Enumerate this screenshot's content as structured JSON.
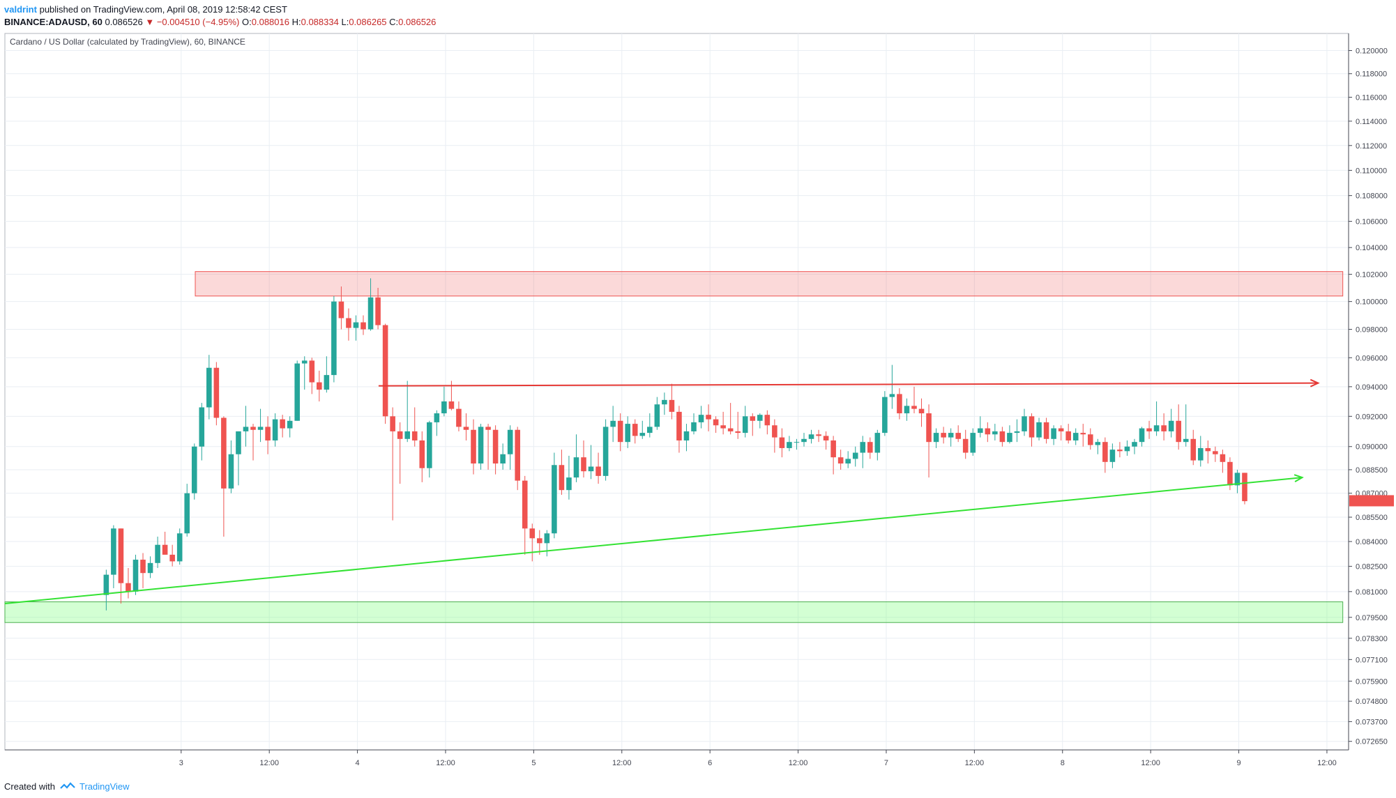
{
  "header": {
    "author": "valdrint",
    "published_text": "published on TradingView.com, April 08, 2019 12:58:42 CEST"
  },
  "ohlc": {
    "symbol": "BINANCE:ADAUSD, 60",
    "last": "0.086526",
    "change_arrow": "▼",
    "change": "−0.004510 (−4.95%)",
    "open_label": "O:",
    "open": "0.088016",
    "high_label": "H:",
    "high": "0.088334",
    "low_label": "L:",
    "low": "0.086265",
    "close_label": "C:",
    "close": "0.086526"
  },
  "footer": {
    "created_with": "Created with",
    "brand": "TradingView",
    "logo_icon": "tradingview-logo-icon"
  },
  "colors": {
    "up": "#26a69a",
    "down": "#ef5350",
    "grid": "#e9eef3",
    "axis": "#434651",
    "zone_red": "#ef5350",
    "zone_green": "#4caf50",
    "line_red": "#e53935",
    "line_green": "#33e233"
  },
  "chart_data": {
    "type": "candlestick",
    "title": "Cardano / US Dollar (calculated by TradingView), 60, BINANCE",
    "y_axis": {
      "scale": "log",
      "range": [
        0.0722,
        0.1215
      ],
      "tick_labels": [
        "0.120000",
        "0.118000",
        "0.116000",
        "0.114000",
        "0.112000",
        "0.110000",
        "0.108000",
        "0.106000",
        "0.104000",
        "0.102000",
        "0.100000",
        "0.098000",
        "0.096000",
        "0.094000",
        "0.092000",
        "0.090000",
        "0.088500",
        "0.087000",
        "0.085500",
        "0.084000",
        "0.082500",
        "0.081000",
        "0.079500",
        "0.078300",
        "0.077100",
        "0.075900",
        "0.074800",
        "0.073700",
        "0.072650"
      ]
    },
    "x_axis": {
      "range_days": [
        2.0,
        9.52
      ],
      "ticks": [
        {
          "t": 3.0,
          "label": "3"
        },
        {
          "t": 3.5,
          "label": "12:00"
        },
        {
          "t": 4.0,
          "label": "4"
        },
        {
          "t": 4.5,
          "label": "12:00"
        },
        {
          "t": 5.0,
          "label": "5"
        },
        {
          "t": 5.5,
          "label": "12:00"
        },
        {
          "t": 6.0,
          "label": "6"
        },
        {
          "t": 6.5,
          "label": "12:00"
        },
        {
          "t": 7.0,
          "label": "7"
        },
        {
          "t": 7.5,
          "label": "12:00"
        },
        {
          "t": 8.0,
          "label": "8"
        },
        {
          "t": 8.5,
          "label": "12:00"
        },
        {
          "t": 9.0,
          "label": "9"
        },
        {
          "t": 9.5,
          "label": "12:00"
        }
      ]
    },
    "candle_interval_days": 0.0416667,
    "candles_start_day": 2.575,
    "candles": [
      {
        "o": 0.0808,
        "h": 0.0823,
        "l": 0.0799,
        "c": 0.082
      },
      {
        "o": 0.082,
        "h": 0.085,
        "l": 0.0812,
        "c": 0.0848
      },
      {
        "o": 0.0848,
        "h": 0.0848,
        "l": 0.0803,
        "c": 0.0815
      },
      {
        "o": 0.0815,
        "h": 0.0824,
        "l": 0.0806,
        "c": 0.081
      },
      {
        "o": 0.081,
        "h": 0.0832,
        "l": 0.0808,
        "c": 0.0829
      },
      {
        "o": 0.0829,
        "h": 0.0833,
        "l": 0.0812,
        "c": 0.0821
      },
      {
        "o": 0.0821,
        "h": 0.0831,
        "l": 0.0818,
        "c": 0.0827
      },
      {
        "o": 0.0827,
        "h": 0.0843,
        "l": 0.0824,
        "c": 0.0838
      },
      {
        "o": 0.0838,
        "h": 0.0846,
        "l": 0.0832,
        "c": 0.0832
      },
      {
        "o": 0.0832,
        "h": 0.0838,
        "l": 0.0825,
        "c": 0.0828
      },
      {
        "o": 0.0828,
        "h": 0.0848,
        "l": 0.0826,
        "c": 0.0845
      },
      {
        "o": 0.0845,
        "h": 0.0876,
        "l": 0.0843,
        "c": 0.087
      },
      {
        "o": 0.087,
        "h": 0.0902,
        "l": 0.0866,
        "c": 0.09
      },
      {
        "o": 0.09,
        "h": 0.0929,
        "l": 0.0891,
        "c": 0.0926
      },
      {
        "o": 0.0926,
        "h": 0.0962,
        "l": 0.0918,
        "c": 0.0953
      },
      {
        "o": 0.0953,
        "h": 0.0957,
        "l": 0.0914,
        "c": 0.0919
      },
      {
        "o": 0.0919,
        "h": 0.092,
        "l": 0.0843,
        "c": 0.0873
      },
      {
        "o": 0.0873,
        "h": 0.0904,
        "l": 0.087,
        "c": 0.0895
      },
      {
        "o": 0.0895,
        "h": 0.091,
        "l": 0.0875,
        "c": 0.091
      },
      {
        "o": 0.091,
        "h": 0.0927,
        "l": 0.09,
        "c": 0.0913
      },
      {
        "o": 0.0913,
        "h": 0.0915,
        "l": 0.0891,
        "c": 0.0911
      },
      {
        "o": 0.0911,
        "h": 0.0925,
        "l": 0.0903,
        "c": 0.0913
      },
      {
        "o": 0.0913,
        "h": 0.092,
        "l": 0.0895,
        "c": 0.0904
      },
      {
        "o": 0.0904,
        "h": 0.0922,
        "l": 0.09,
        "c": 0.0918
      },
      {
        "o": 0.0918,
        "h": 0.0921,
        "l": 0.0906,
        "c": 0.0912
      },
      {
        "o": 0.0912,
        "h": 0.092,
        "l": 0.0906,
        "c": 0.0917
      },
      {
        "o": 0.0917,
        "h": 0.0958,
        "l": 0.0917,
        "c": 0.0956
      },
      {
        "o": 0.0956,
        "h": 0.0961,
        "l": 0.0938,
        "c": 0.0958
      },
      {
        "o": 0.0958,
        "h": 0.096,
        "l": 0.0935,
        "c": 0.0943
      },
      {
        "o": 0.0943,
        "h": 0.0951,
        "l": 0.093,
        "c": 0.0938
      },
      {
        "o": 0.0938,
        "h": 0.0961,
        "l": 0.0936,
        "c": 0.0948
      },
      {
        "o": 0.0948,
        "h": 0.1004,
        "l": 0.0943,
        "c": 0.1
      },
      {
        "o": 0.1,
        "h": 0.1011,
        "l": 0.098,
        "c": 0.0988
      },
      {
        "o": 0.0988,
        "h": 0.0995,
        "l": 0.0972,
        "c": 0.0981
      },
      {
        "o": 0.0981,
        "h": 0.099,
        "l": 0.0972,
        "c": 0.0985
      },
      {
        "o": 0.0985,
        "h": 0.099,
        "l": 0.0976,
        "c": 0.098
      },
      {
        "o": 0.098,
        "h": 0.1017,
        "l": 0.0979,
        "c": 0.1003
      },
      {
        "o": 0.1003,
        "h": 0.101,
        "l": 0.098,
        "c": 0.0983
      },
      {
        "o": 0.0983,
        "h": 0.0984,
        "l": 0.0915,
        "c": 0.092
      },
      {
        "o": 0.092,
        "h": 0.0926,
        "l": 0.0853,
        "c": 0.091
      },
      {
        "o": 0.091,
        "h": 0.0916,
        "l": 0.0876,
        "c": 0.0905
      },
      {
        "o": 0.0905,
        "h": 0.0944,
        "l": 0.0903,
        "c": 0.091
      },
      {
        "o": 0.091,
        "h": 0.0926,
        "l": 0.09,
        "c": 0.0904
      },
      {
        "o": 0.0904,
        "h": 0.091,
        "l": 0.0877,
        "c": 0.0886
      },
      {
        "o": 0.0886,
        "h": 0.0917,
        "l": 0.088,
        "c": 0.0916
      },
      {
        "o": 0.0916,
        "h": 0.0924,
        "l": 0.0907,
        "c": 0.0922
      },
      {
        "o": 0.0922,
        "h": 0.094,
        "l": 0.092,
        "c": 0.093
      },
      {
        "o": 0.093,
        "h": 0.0944,
        "l": 0.0924,
        "c": 0.0925
      },
      {
        "o": 0.0925,
        "h": 0.093,
        "l": 0.091,
        "c": 0.0913
      },
      {
        "o": 0.0913,
        "h": 0.0922,
        "l": 0.0904,
        "c": 0.0911
      },
      {
        "o": 0.0911,
        "h": 0.0918,
        "l": 0.0882,
        "c": 0.0889
      },
      {
        "o": 0.0889,
        "h": 0.0915,
        "l": 0.0885,
        "c": 0.0913
      },
      {
        "o": 0.0913,
        "h": 0.0915,
        "l": 0.0885,
        "c": 0.0911
      },
      {
        "o": 0.0911,
        "h": 0.0914,
        "l": 0.0882,
        "c": 0.0889
      },
      {
        "o": 0.0889,
        "h": 0.0902,
        "l": 0.0885,
        "c": 0.0895
      },
      {
        "o": 0.0895,
        "h": 0.0914,
        "l": 0.0885,
        "c": 0.0911
      },
      {
        "o": 0.0911,
        "h": 0.0913,
        "l": 0.0872,
        "c": 0.0878
      },
      {
        "o": 0.0878,
        "h": 0.0881,
        "l": 0.0832,
        "c": 0.0848
      },
      {
        "o": 0.0848,
        "h": 0.0851,
        "l": 0.0828,
        "c": 0.0842
      },
      {
        "o": 0.0842,
        "h": 0.0847,
        "l": 0.0832,
        "c": 0.0839
      },
      {
        "o": 0.0839,
        "h": 0.0847,
        "l": 0.0831,
        "c": 0.0845
      },
      {
        "o": 0.0845,
        "h": 0.0896,
        "l": 0.0842,
        "c": 0.0888
      },
      {
        "o": 0.0888,
        "h": 0.0898,
        "l": 0.0869,
        "c": 0.0872
      },
      {
        "o": 0.0872,
        "h": 0.0894,
        "l": 0.0866,
        "c": 0.088
      },
      {
        "o": 0.088,
        "h": 0.0908,
        "l": 0.0877,
        "c": 0.0893
      },
      {
        "o": 0.0893,
        "h": 0.0904,
        "l": 0.088,
        "c": 0.0884
      },
      {
        "o": 0.0884,
        "h": 0.0901,
        "l": 0.0879,
        "c": 0.0887
      },
      {
        "o": 0.0887,
        "h": 0.0896,
        "l": 0.0876,
        "c": 0.0881
      },
      {
        "o": 0.0881,
        "h": 0.0918,
        "l": 0.0878,
        "c": 0.0913
      },
      {
        "o": 0.0913,
        "h": 0.0927,
        "l": 0.0903,
        "c": 0.0917
      },
      {
        "o": 0.0917,
        "h": 0.0922,
        "l": 0.0897,
        "c": 0.0903
      },
      {
        "o": 0.0903,
        "h": 0.092,
        "l": 0.0899,
        "c": 0.0915
      },
      {
        "o": 0.0915,
        "h": 0.0918,
        "l": 0.0902,
        "c": 0.0907
      },
      {
        "o": 0.0907,
        "h": 0.0917,
        "l": 0.0905,
        "c": 0.0909
      },
      {
        "o": 0.0909,
        "h": 0.0922,
        "l": 0.0906,
        "c": 0.0913
      },
      {
        "o": 0.0913,
        "h": 0.0933,
        "l": 0.0911,
        "c": 0.0928
      },
      {
        "o": 0.0928,
        "h": 0.0936,
        "l": 0.0921,
        "c": 0.0931
      },
      {
        "o": 0.0931,
        "h": 0.0942,
        "l": 0.0918,
        "c": 0.0923
      },
      {
        "o": 0.0923,
        "h": 0.0927,
        "l": 0.0896,
        "c": 0.0904
      },
      {
        "o": 0.0904,
        "h": 0.0915,
        "l": 0.0897,
        "c": 0.091
      },
      {
        "o": 0.091,
        "h": 0.0922,
        "l": 0.0908,
        "c": 0.0916
      },
      {
        "o": 0.0916,
        "h": 0.0927,
        "l": 0.0912,
        "c": 0.0921
      },
      {
        "o": 0.0921,
        "h": 0.0928,
        "l": 0.091,
        "c": 0.0918
      },
      {
        "o": 0.0918,
        "h": 0.092,
        "l": 0.0909,
        "c": 0.0914
      },
      {
        "o": 0.0914,
        "h": 0.0923,
        "l": 0.0908,
        "c": 0.0912
      },
      {
        "o": 0.0912,
        "h": 0.0929,
        "l": 0.0908,
        "c": 0.091
      },
      {
        "o": 0.091,
        "h": 0.0923,
        "l": 0.0905,
        "c": 0.0909
      },
      {
        "o": 0.0909,
        "h": 0.0927,
        "l": 0.0906,
        "c": 0.092
      },
      {
        "o": 0.092,
        "h": 0.0922,
        "l": 0.0907,
        "c": 0.0917
      },
      {
        "o": 0.0917,
        "h": 0.0922,
        "l": 0.0912,
        "c": 0.0921
      },
      {
        "o": 0.0921,
        "h": 0.0924,
        "l": 0.0908,
        "c": 0.0914
      },
      {
        "o": 0.0914,
        "h": 0.0918,
        "l": 0.0896,
        "c": 0.0906
      },
      {
        "o": 0.0906,
        "h": 0.0912,
        "l": 0.0893,
        "c": 0.0899
      },
      {
        "o": 0.0899,
        "h": 0.0907,
        "l": 0.0897,
        "c": 0.0903
      },
      {
        "o": 0.0903,
        "h": 0.0905,
        "l": 0.0898,
        "c": 0.0903
      },
      {
        "o": 0.0903,
        "h": 0.0909,
        "l": 0.09,
        "c": 0.0905
      },
      {
        "o": 0.0905,
        "h": 0.0911,
        "l": 0.0902,
        "c": 0.0908
      },
      {
        "o": 0.0908,
        "h": 0.0911,
        "l": 0.0903,
        "c": 0.0907
      },
      {
        "o": 0.0907,
        "h": 0.091,
        "l": 0.0898,
        "c": 0.0904
      },
      {
        "o": 0.0904,
        "h": 0.0907,
        "l": 0.0882,
        "c": 0.0893
      },
      {
        "o": 0.0893,
        "h": 0.0898,
        "l": 0.0885,
        "c": 0.0889
      },
      {
        "o": 0.0889,
        "h": 0.0897,
        "l": 0.0886,
        "c": 0.0892
      },
      {
        "o": 0.0892,
        "h": 0.09,
        "l": 0.0887,
        "c": 0.0896
      },
      {
        "o": 0.0896,
        "h": 0.0907,
        "l": 0.0886,
        "c": 0.0903
      },
      {
        "o": 0.0903,
        "h": 0.0906,
        "l": 0.0892,
        "c": 0.0896
      },
      {
        "o": 0.0896,
        "h": 0.0911,
        "l": 0.0891,
        "c": 0.0909
      },
      {
        "o": 0.0909,
        "h": 0.0937,
        "l": 0.0907,
        "c": 0.0933
      },
      {
        "o": 0.0933,
        "h": 0.0955,
        "l": 0.0925,
        "c": 0.0935
      },
      {
        "o": 0.0935,
        "h": 0.0939,
        "l": 0.0918,
        "c": 0.0922
      },
      {
        "o": 0.0922,
        "h": 0.0932,
        "l": 0.0917,
        "c": 0.0927
      },
      {
        "o": 0.0927,
        "h": 0.094,
        "l": 0.0922,
        "c": 0.0925
      },
      {
        "o": 0.0925,
        "h": 0.0932,
        "l": 0.0913,
        "c": 0.0922
      },
      {
        "o": 0.0922,
        "h": 0.0928,
        "l": 0.088,
        "c": 0.0903
      },
      {
        "o": 0.0903,
        "h": 0.0912,
        "l": 0.0899,
        "c": 0.0909
      },
      {
        "o": 0.0909,
        "h": 0.0913,
        "l": 0.0902,
        "c": 0.0906
      },
      {
        "o": 0.0906,
        "h": 0.0912,
        "l": 0.09,
        "c": 0.0909
      },
      {
        "o": 0.0909,
        "h": 0.0914,
        "l": 0.0903,
        "c": 0.0905
      },
      {
        "o": 0.0905,
        "h": 0.0911,
        "l": 0.0892,
        "c": 0.0896
      },
      {
        "o": 0.0896,
        "h": 0.0912,
        "l": 0.0894,
        "c": 0.0909
      },
      {
        "o": 0.0909,
        "h": 0.092,
        "l": 0.0906,
        "c": 0.0912
      },
      {
        "o": 0.0912,
        "h": 0.0916,
        "l": 0.0903,
        "c": 0.0908
      },
      {
        "o": 0.0908,
        "h": 0.0915,
        "l": 0.0904,
        "c": 0.091
      },
      {
        "o": 0.091,
        "h": 0.0913,
        "l": 0.09,
        "c": 0.0903
      },
      {
        "o": 0.0903,
        "h": 0.0914,
        "l": 0.0902,
        "c": 0.0909
      },
      {
        "o": 0.0909,
        "h": 0.0918,
        "l": 0.0903,
        "c": 0.091
      },
      {
        "o": 0.091,
        "h": 0.0925,
        "l": 0.0907,
        "c": 0.092
      },
      {
        "o": 0.092,
        "h": 0.0922,
        "l": 0.09,
        "c": 0.0906
      },
      {
        "o": 0.0906,
        "h": 0.0919,
        "l": 0.0904,
        "c": 0.0916
      },
      {
        "o": 0.0916,
        "h": 0.0919,
        "l": 0.0902,
        "c": 0.0905
      },
      {
        "o": 0.0905,
        "h": 0.0914,
        "l": 0.0901,
        "c": 0.0912
      },
      {
        "o": 0.0912,
        "h": 0.0914,
        "l": 0.0904,
        "c": 0.091
      },
      {
        "o": 0.091,
        "h": 0.0915,
        "l": 0.0902,
        "c": 0.0904
      },
      {
        "o": 0.0904,
        "h": 0.0912,
        "l": 0.0901,
        "c": 0.0909
      },
      {
        "o": 0.0909,
        "h": 0.0915,
        "l": 0.09,
        "c": 0.0908
      },
      {
        "o": 0.0908,
        "h": 0.0912,
        "l": 0.0898,
        "c": 0.0901
      },
      {
        "o": 0.0901,
        "h": 0.0905,
        "l": 0.0895,
        "c": 0.0903
      },
      {
        "o": 0.0903,
        "h": 0.0906,
        "l": 0.0883,
        "c": 0.089
      },
      {
        "o": 0.089,
        "h": 0.0902,
        "l": 0.0886,
        "c": 0.0898
      },
      {
        "o": 0.0898,
        "h": 0.0903,
        "l": 0.0893,
        "c": 0.0897
      },
      {
        "o": 0.0897,
        "h": 0.0904,
        "l": 0.0894,
        "c": 0.09
      },
      {
        "o": 0.09,
        "h": 0.0905,
        "l": 0.0895,
        "c": 0.0903
      },
      {
        "o": 0.0903,
        "h": 0.0913,
        "l": 0.09,
        "c": 0.0912
      },
      {
        "o": 0.0912,
        "h": 0.0917,
        "l": 0.0905,
        "c": 0.091
      },
      {
        "o": 0.091,
        "h": 0.093,
        "l": 0.0907,
        "c": 0.0914
      },
      {
        "o": 0.0914,
        "h": 0.0922,
        "l": 0.0904,
        "c": 0.091
      },
      {
        "o": 0.091,
        "h": 0.0925,
        "l": 0.0906,
        "c": 0.0917
      },
      {
        "o": 0.0917,
        "h": 0.0928,
        "l": 0.0898,
        "c": 0.0903
      },
      {
        "o": 0.0903,
        "h": 0.0928,
        "l": 0.09,
        "c": 0.0905
      },
      {
        "o": 0.0905,
        "h": 0.0911,
        "l": 0.0888,
        "c": 0.0891
      },
      {
        "o": 0.0891,
        "h": 0.0907,
        "l": 0.0887,
        "c": 0.0899
      },
      {
        "o": 0.0899,
        "h": 0.0904,
        "l": 0.0889,
        "c": 0.0897
      },
      {
        "o": 0.0897,
        "h": 0.09,
        "l": 0.089,
        "c": 0.0895
      },
      {
        "o": 0.0895,
        "h": 0.0898,
        "l": 0.0883,
        "c": 0.089
      },
      {
        "o": 0.089,
        "h": 0.0893,
        "l": 0.0872,
        "c": 0.0875
      },
      {
        "o": 0.0875,
        "h": 0.0885,
        "l": 0.087,
        "c": 0.0883
      },
      {
        "o": 0.0883,
        "h": 0.0883,
        "l": 0.0863,
        "c": 0.0865
      }
    ],
    "annotations": {
      "resistance_zone": {
        "label": "",
        "y_top": 0.1022,
        "y_bottom": 0.1004,
        "x_start": 3.08,
        "x_end": 9.59
      },
      "support_zone": {
        "label": "",
        "y_top": 0.0804,
        "y_bottom": 0.0792,
        "x_start": 2.0,
        "x_end": 9.59
      },
      "horizontal_resistance": {
        "y": 0.0942,
        "x_start": 4.12,
        "x_end": 9.45
      },
      "ascending_support": {
        "x1": 2.0,
        "y1": 0.0803,
        "x2": 9.36,
        "y2": 0.088
      }
    }
  }
}
